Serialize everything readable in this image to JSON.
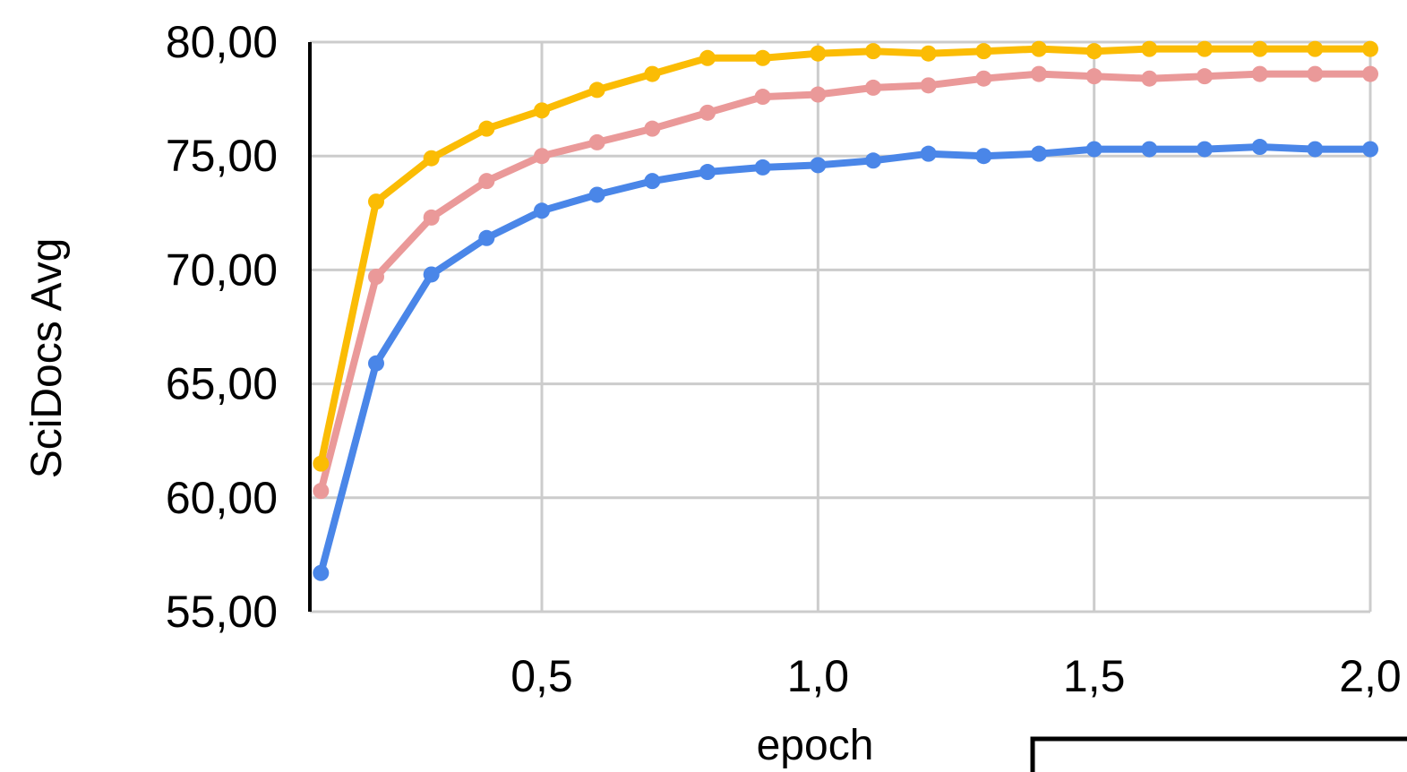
{
  "chart_data": {
    "type": "line",
    "title": "",
    "xlabel": "epoch",
    "ylabel": "SciDocs Avg",
    "xlim": [
      0.08,
      2.0
    ],
    "ylim": [
      55,
      80
    ],
    "x_ticks": [
      0.5,
      1.0,
      1.5,
      2.0
    ],
    "x_tick_labels": [
      "0,5",
      "1,0",
      "1,5",
      "2,0"
    ],
    "y_ticks": [
      55,
      60,
      65,
      70,
      75,
      80
    ],
    "y_tick_labels": [
      "55,00",
      "60,00",
      "65,00",
      "70,00",
      "75,00",
      "80,00"
    ],
    "grid": true,
    "legend": "none visible",
    "x": [
      0.1,
      0.2,
      0.3,
      0.4,
      0.5,
      0.6,
      0.7,
      0.8,
      0.9,
      1.0,
      1.1,
      1.2,
      1.3,
      1.4,
      1.5,
      1.6,
      1.7,
      1.8,
      1.9,
      2.0
    ],
    "series": [
      {
        "color": "#FBBC04",
        "values": [
          61.5,
          73.0,
          74.9,
          76.2,
          77.0,
          77.9,
          78.6,
          79.3,
          79.3,
          79.5,
          79.6,
          79.5,
          79.6,
          79.7,
          79.6,
          79.7,
          79.7,
          79.7,
          79.7,
          79.7
        ]
      },
      {
        "color": "#EA9999",
        "values": [
          60.3,
          69.7,
          72.3,
          73.9,
          75.0,
          75.6,
          76.2,
          76.9,
          77.6,
          77.7,
          78.0,
          78.1,
          78.4,
          78.6,
          78.5,
          78.4,
          78.5,
          78.6,
          78.6,
          78.6
        ]
      },
      {
        "color": "#4A86E8",
        "values": [
          56.7,
          65.9,
          69.8,
          71.4,
          72.6,
          73.3,
          73.9,
          74.3,
          74.5,
          74.6,
          74.8,
          75.1,
          75.0,
          75.1,
          75.3,
          75.3,
          75.3,
          75.4,
          75.3,
          75.3
        ]
      }
    ]
  }
}
